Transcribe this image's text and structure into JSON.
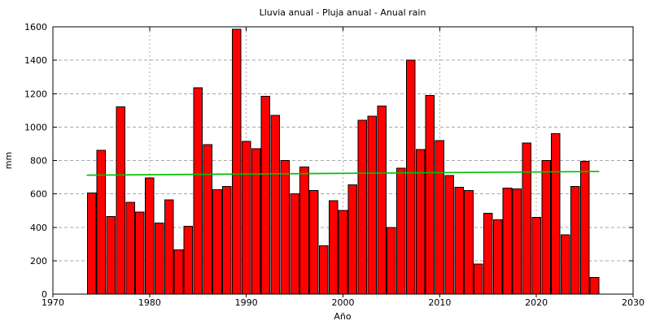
{
  "chart_data": {
    "type": "bar",
    "title": "Lluvia anual - Pluja anual - Anual rain",
    "xlabel": "Año",
    "ylabel": "mm",
    "xlim": [
      1970,
      2030
    ],
    "ylim": [
      0,
      1600
    ],
    "xticks": [
      1970,
      1980,
      1990,
      2000,
      2010,
      2020,
      2030
    ],
    "yticks": [
      0,
      200,
      400,
      600,
      800,
      1000,
      1200,
      1400,
      1600
    ],
    "grid": true,
    "legend": "none",
    "years": [
      1974,
      1975,
      1976,
      1977,
      1978,
      1979,
      1980,
      1981,
      1982,
      1983,
      1984,
      1985,
      1986,
      1987,
      1988,
      1989,
      1990,
      1991,
      1992,
      1993,
      1994,
      1995,
      1996,
      1997,
      1998,
      1999,
      2000,
      2001,
      2002,
      2003,
      2004,
      2005,
      2006,
      2007,
      2008,
      2009,
      2010,
      2011,
      2012,
      2013,
      2014,
      2015,
      2016,
      2017,
      2018,
      2019,
      2020,
      2021,
      2022,
      2023,
      2024,
      2025,
      2026
    ],
    "values": [
      605,
      860,
      465,
      1120,
      550,
      490,
      695,
      425,
      565,
      265,
      405,
      1235,
      895,
      625,
      645,
      1585,
      915,
      870,
      1185,
      1070,
      800,
      600,
      760,
      620,
      290,
      560,
      500,
      655,
      1040,
      1065,
      1125,
      400,
      755,
      1400,
      865,
      1190,
      920,
      710,
      640,
      620,
      180,
      485,
      445,
      635,
      630,
      905,
      460,
      800,
      960,
      355,
      645,
      795,
      100
    ],
    "trend_line": {
      "x_start": 1973.5,
      "y_start": 712,
      "x_end": 2026.5,
      "y_end": 734,
      "color": "#00c000"
    },
    "colors": {
      "bar_fill": "#ff0000",
      "bar_border": "#000000",
      "axis": "#000000",
      "grid": "#a8a8a8",
      "text": "#000000",
      "background": "#ffffff"
    }
  }
}
